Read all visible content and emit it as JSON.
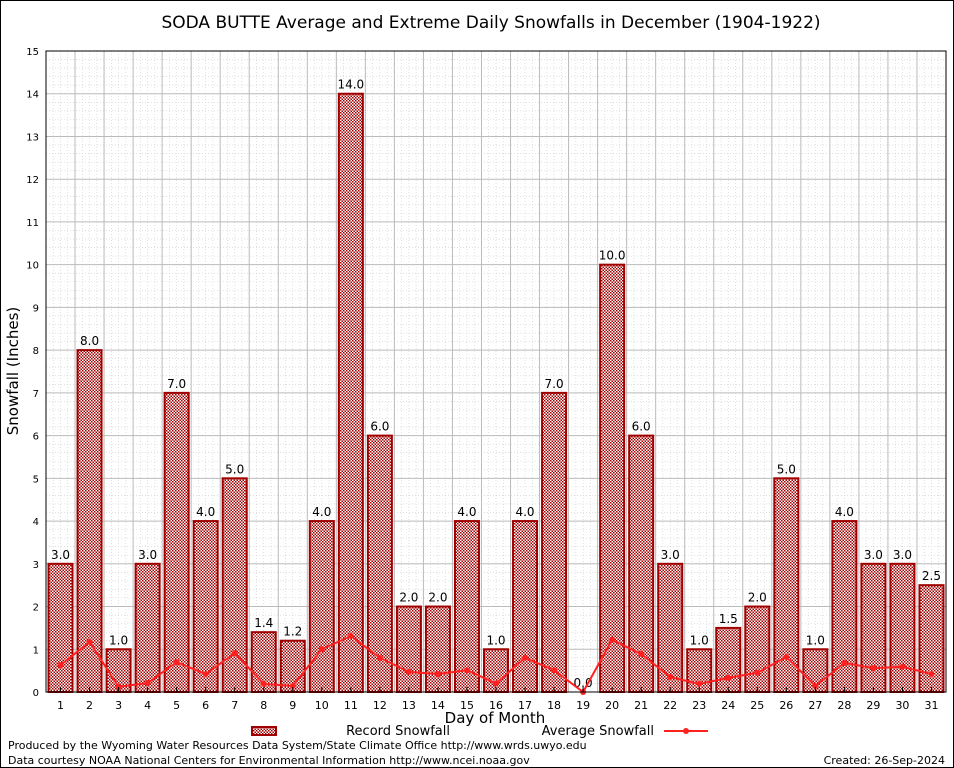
{
  "chart_data": {
    "type": "bar",
    "title": "SODA BUTTE Average and Extreme Daily Snowfalls in December (1904-1922)",
    "xlabel": "Day of Month",
    "ylabel": "Snowfall (Inches)",
    "ylim": [
      0,
      15
    ],
    "yticks": [
      "0",
      "1",
      "2",
      "3",
      "4",
      "5",
      "6",
      "7",
      "8",
      "9",
      "10",
      "11",
      "12",
      "13",
      "14",
      "15"
    ],
    "categories": [
      "1",
      "2",
      "3",
      "4",
      "5",
      "6",
      "7",
      "8",
      "9",
      "10",
      "11",
      "12",
      "13",
      "14",
      "15",
      "16",
      "17",
      "18",
      "19",
      "20",
      "21",
      "22",
      "23",
      "24",
      "25",
      "26",
      "27",
      "28",
      "29",
      "30",
      "31"
    ],
    "grid": true,
    "legend_placement": "bottom",
    "series": [
      {
        "name": "Record Snowfall",
        "type": "bar",
        "color": "#a00000",
        "values": [
          3.0,
          8.0,
          1.0,
          3.0,
          7.0,
          4.0,
          5.0,
          1.4,
          1.2,
          4.0,
          14.0,
          6.0,
          2.0,
          2.0,
          4.0,
          1.0,
          4.0,
          7.0,
          0.0,
          10.0,
          6.0,
          3.0,
          1.0,
          1.5,
          2.0,
          5.0,
          1.0,
          4.0,
          3.0,
          3.0,
          2.5
        ],
        "labels": [
          "3.0",
          "8.0",
          "1.0",
          "3.0",
          "7.0",
          "4.0",
          "5.0",
          "1.4",
          "1.2",
          "4.0",
          "14.0",
          "6.0",
          "2.0",
          "2.0",
          "4.0",
          "1.0",
          "4.0",
          "7.0",
          "0.0",
          "10.0",
          "6.0",
          "3.0",
          "1.0",
          "1.5",
          "2.0",
          "5.0",
          "1.0",
          "4.0",
          "3.0",
          "3.0",
          "2.5"
        ]
      },
      {
        "name": "Average Snowfall",
        "type": "line",
        "color": "#ff2020",
        "values": [
          0.63,
          1.17,
          0.12,
          0.21,
          0.7,
          0.42,
          0.91,
          0.19,
          0.14,
          1.0,
          1.31,
          0.8,
          0.47,
          0.42,
          0.51,
          0.2,
          0.8,
          0.51,
          0.0,
          1.22,
          0.89,
          0.35,
          0.19,
          0.33,
          0.45,
          0.82,
          0.14,
          0.68,
          0.56,
          0.59,
          0.42
        ]
      }
    ]
  },
  "footer": {
    "line1": "Produced by the Wyoming Water Resources Data System/State Climate Office http://www.wrds.uwyo.edu",
    "line2": "Data courtesy NOAA National Centers for Environmental Information http://www.ncei.noaa.gov",
    "created": "Created:  26-Sep-2024"
  }
}
